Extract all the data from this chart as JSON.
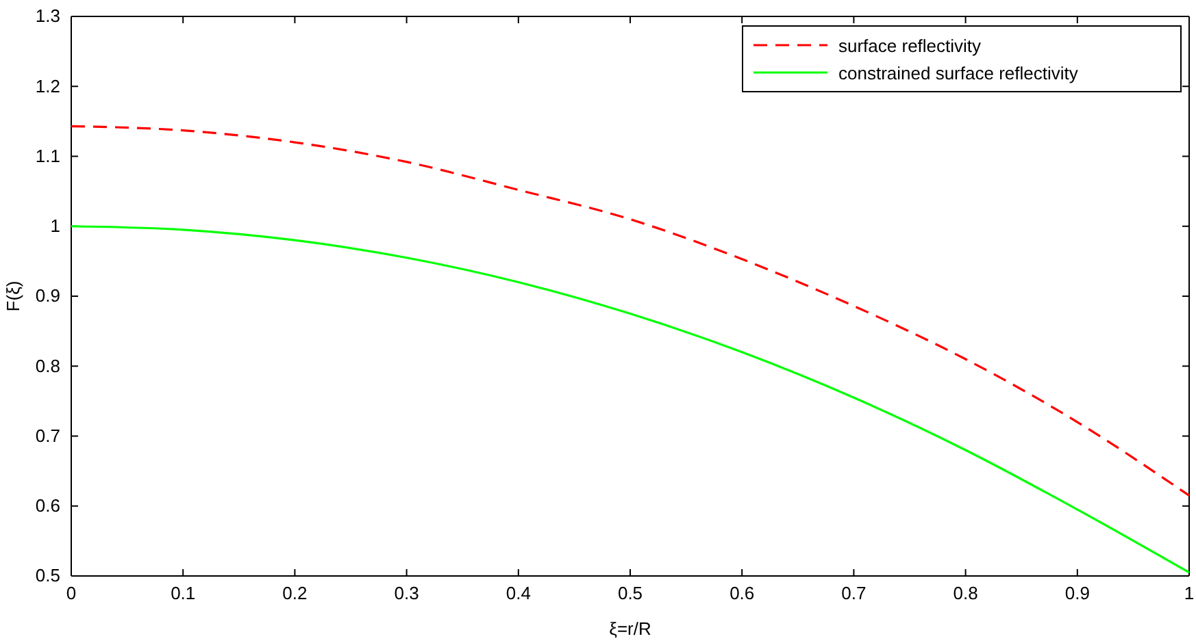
{
  "chart_data": {
    "type": "line",
    "xlabel": "ξ=r/R",
    "ylabel": "F(ξ)",
    "x": [
      0,
      0.1,
      0.2,
      0.3,
      0.4,
      0.5,
      0.6,
      0.7,
      0.8,
      0.9,
      1
    ],
    "series": [
      {
        "name": "surface reflectivity",
        "color": "#ff0000",
        "line_style": "dashed",
        "values": [
          1.143,
          1.137,
          1.12,
          1.092,
          1.052,
          1.01,
          0.953,
          0.886,
          0.81,
          0.72,
          0.615
        ]
      },
      {
        "name": "constrained surface reflectivity",
        "color": "#00ff00",
        "line_style": "solid",
        "values": [
          1.0,
          0.995,
          0.98,
          0.955,
          0.92,
          0.875,
          0.82,
          0.755,
          0.68,
          0.595,
          0.505
        ]
      }
    ],
    "xlim": [
      0,
      1
    ],
    "xticks": [
      {
        "value": 0,
        "label": "0"
      },
      0.1,
      0.2,
      0.3,
      0.4,
      0.5,
      0.6,
      0.7,
      0.8,
      0.9,
      {
        "value": 1,
        "label": "1"
      }
    ],
    "ylim": [
      0.5,
      1.3
    ],
    "yticks": [
      0.5,
      0.6,
      0.7,
      0.8,
      0.9,
      {
        "value": 1,
        "label": "1"
      },
      1.1,
      1.2,
      1.3
    ],
    "grid": false,
    "legend": "top right",
    "marker": "none"
  }
}
